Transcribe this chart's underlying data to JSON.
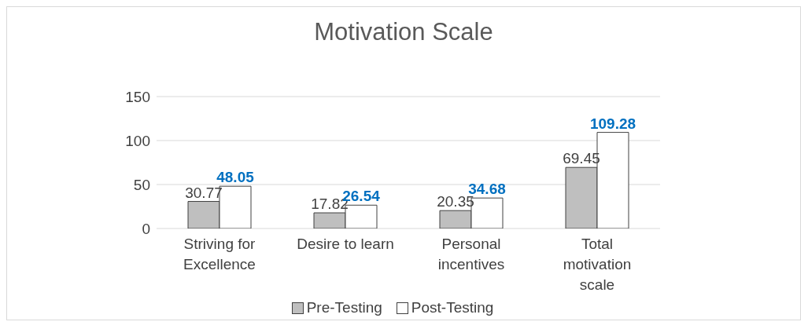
{
  "chart_data": {
    "type": "bar",
    "title": "Motivation Scale",
    "categories": [
      "Striving for Excellence",
      "Desire to learn",
      "Personal incentives",
      "Total motivation scale"
    ],
    "series": [
      {
        "name": "Pre-Testing",
        "color": "#bfbfbf",
        "values": [
          30.77,
          17.82,
          20.35,
          69.45
        ]
      },
      {
        "name": "Post-Testing",
        "color": "#ffffff",
        "values": [
          48.05,
          26.54,
          34.68,
          109.28
        ]
      }
    ],
    "ylim": [
      0,
      150
    ],
    "yticks": [
      0,
      50,
      100,
      150
    ],
    "grid": "y",
    "legend": "bottom",
    "data_labels": true
  }
}
